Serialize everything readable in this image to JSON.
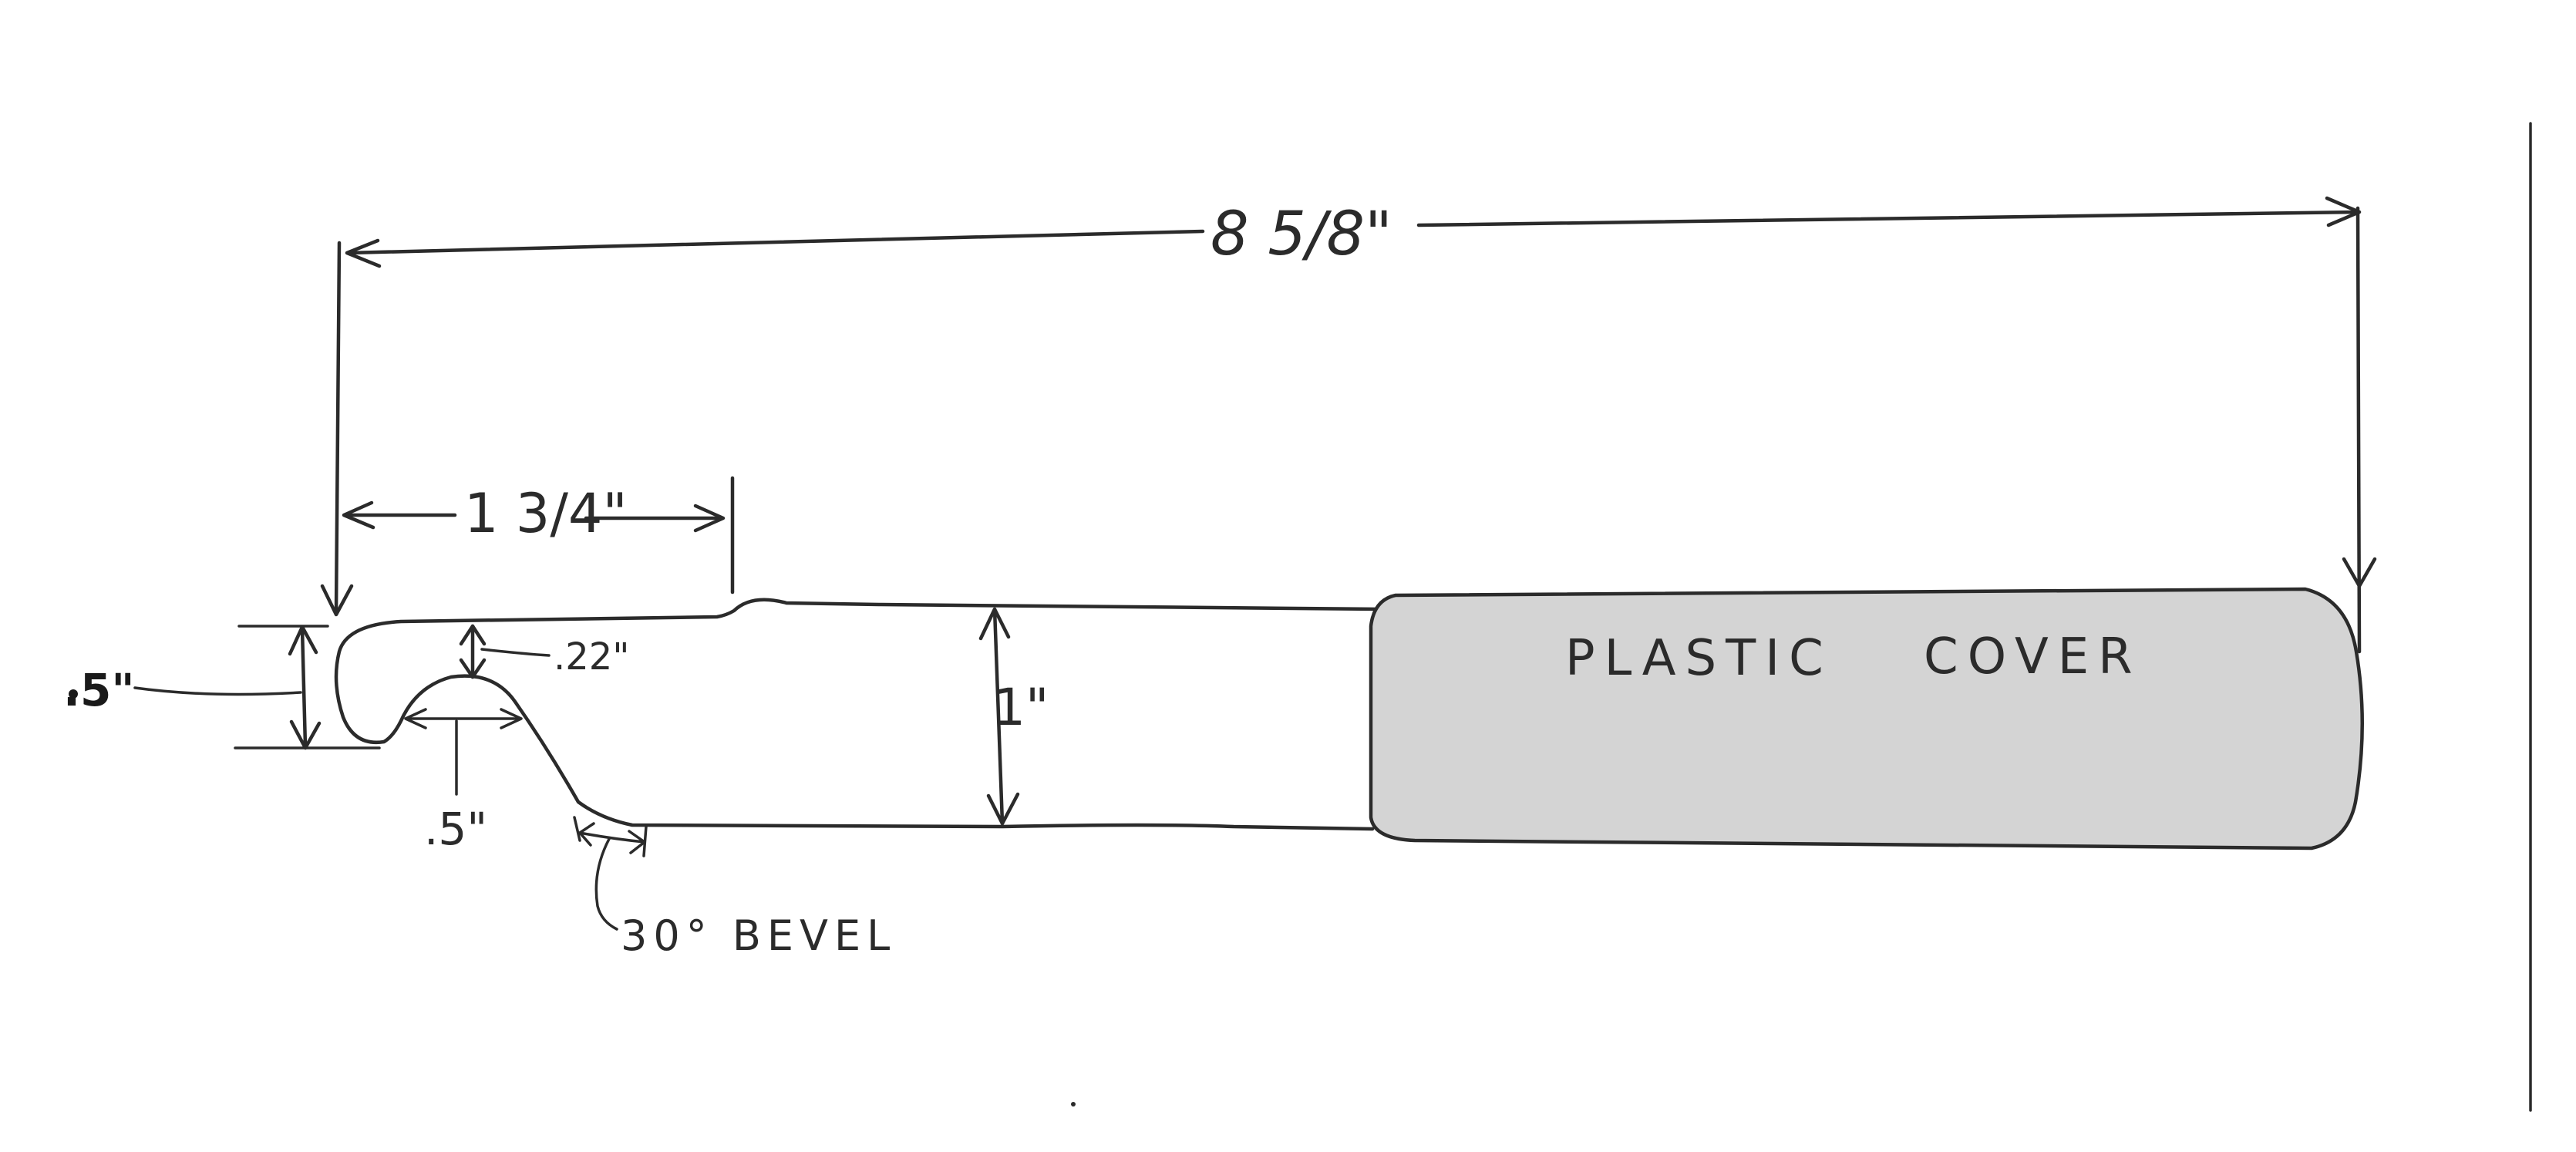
{
  "dimensions": {
    "overall_length": "8 5/8\"",
    "hook_section_length": "1 3/4\"",
    "hook_tip_height": ".5\"",
    "hook_gap_depth": ".22\"",
    "hook_gap_width": ".5\"",
    "shank_height": "1\"",
    "bevel": "30° BEVEL"
  },
  "labels": {
    "cover_word_1": "PLASTIC",
    "cover_word_2": "COVER"
  },
  "colors": {
    "ink": "#2b2b2b",
    "cover_fill": "#d4d4d4",
    "paper": "#ffffff"
  }
}
